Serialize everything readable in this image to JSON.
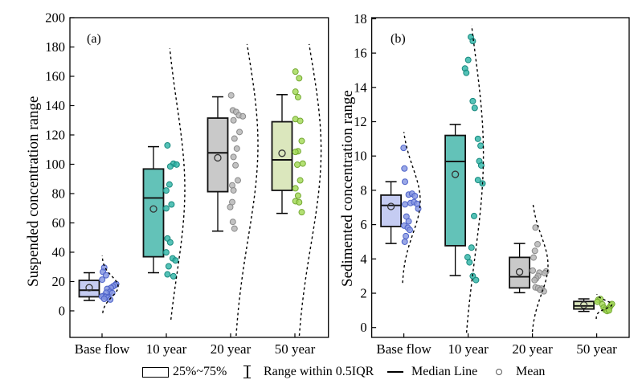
{
  "figure": {
    "background": "#ffffff",
    "axis_color": "#000000",
    "text_color": "#000000"
  },
  "legend": {
    "items": [
      {
        "icon": "box-icon",
        "label": "25%~75%"
      },
      {
        "icon": "whisker-icon",
        "label": "Range within 0.5IQR"
      },
      {
        "icon": "median-line-icon",
        "label": "Median Line"
      },
      {
        "icon": "mean-circle-icon",
        "label": "Mean"
      }
    ]
  },
  "chart_data": [
    {
      "type": "box",
      "panel_label": "(a)",
      "ylabel": "Suspended concentration range",
      "xlabel": "",
      "categories": [
        "Base flow",
        "10 year",
        "20 year",
        "50 year"
      ],
      "ylim": [
        -18.1,
        200
      ],
      "yticks": [
        0,
        20,
        40,
        60,
        80,
        100,
        120,
        140,
        160,
        180,
        200
      ],
      "grid": false,
      "series": [
        {
          "category": "Base flow",
          "box_color": "#c5ccf2",
          "point_color": "#8495e2",
          "point_edge_color": "#4d62c8",
          "box": {
            "whisker_low": 7.1,
            "q1": 9.6,
            "median": 14.1,
            "mean": 15.8,
            "q3": 20.8,
            "whisker_high": 26
          },
          "points": [
            {
              "v": 29.5,
              "dx": 2.7
            },
            {
              "v": 26.6,
              "dx": 1.1
            },
            {
              "v": 24.3,
              "dx": 4.9
            },
            {
              "v": 21.3,
              "dx": 0.2
            },
            {
              "v": 18.3,
              "dx": 17.6
            },
            {
              "v": 17.5,
              "dx": 16.0
            },
            {
              "v": 16.6,
              "dx": 13.5
            },
            {
              "v": 15.7,
              "dx": 11.0
            },
            {
              "v": 15.0,
              "dx": 6.4
            },
            {
              "v": 12.9,
              "dx": 9.7
            },
            {
              "v": 12.4,
              "dx": 5.2
            },
            {
              "v": 12.2,
              "dx": 12.7
            },
            {
              "v": 10.2,
              "dx": 1.9
            },
            {
              "v": 9.8,
              "dx": -0.2
            },
            {
              "v": 9.5,
              "dx": 4.7
            },
            {
              "v": 8.9,
              "dx": 7.4
            },
            {
              "v": 8.2,
              "dx": 2.7
            },
            {
              "v": 7.7,
              "dx": 10.2
            }
          ],
          "curve": {
            "dx0": 0,
            "amp": 20,
            "mu": 16.6,
            "sigma": 7.1,
            "lo": -1.5,
            "hi": 37.8
          }
        },
        {
          "category": "10 year",
          "box_color": "#63c2b8",
          "point_color": "#2fb5a7",
          "point_edge_color": "#17897e",
          "box": {
            "whisker_low": 26,
            "q1": 36.9,
            "median": 77,
            "mean": 69.5,
            "q3": 96.8,
            "whisker_high": 112
          },
          "points": [
            {
              "v": 112.9,
              "dx": 1.4
            },
            {
              "v": 100.4,
              "dx": 8.9
            },
            {
              "v": 98.5,
              "dx": 4.9
            },
            {
              "v": 99.8,
              "dx": 12.8
            },
            {
              "v": 86.2,
              "dx": 3.9
            },
            {
              "v": 82.1,
              "dx": -0.1
            },
            {
              "v": 72.6,
              "dx": 6.4
            },
            {
              "v": 69.9,
              "dx": -0.1
            },
            {
              "v": 49.4,
              "dx": 1.4
            },
            {
              "v": 46.7,
              "dx": 4.9
            },
            {
              "v": 39.9,
              "dx": -0.1
            },
            {
              "v": 35.8,
              "dx": 7.9
            },
            {
              "v": 34.4,
              "dx": 11.4
            },
            {
              "v": 30.4,
              "dx": 2.9
            },
            {
              "v": 24.9,
              "dx": 1.4
            },
            {
              "v": 23.6,
              "dx": 8.9
            }
          ],
          "curve": {
            "dx0": -2,
            "amp": 25,
            "mu": 83,
            "sigma": 58,
            "lo": -6,
            "hi": 179
          }
        },
        {
          "category": "20 year",
          "box_color": "#c9c9c9",
          "point_color": "#b5b5b5",
          "point_edge_color": "#8a8a8a",
          "box": {
            "whisker_low": 54.4,
            "q1": 81.3,
            "median": 107.8,
            "mean": 104.4,
            "q3": 131.5,
            "whisker_high": 146
          },
          "points": [
            {
              "v": 147.0,
              "dx": 0.7
            },
            {
              "v": 136.8,
              "dx": 2.8
            },
            {
              "v": 135.7,
              "dx": 6.9
            },
            {
              "v": 133.4,
              "dx": 10.3
            },
            {
              "v": 132.7,
              "dx": 15.2
            },
            {
              "v": 130.0,
              "dx": 3.6
            },
            {
              "v": 122.0,
              "dx": 11.1
            },
            {
              "v": 117.5,
              "dx": 4.8
            },
            {
              "v": 110.7,
              "dx": 7.8
            },
            {
              "v": 105.0,
              "dx": 3.6
            },
            {
              "v": 99.3,
              "dx": 6.1
            },
            {
              "v": 89.0,
              "dx": 9.0
            },
            {
              "v": 85.6,
              "dx": 2.0
            },
            {
              "v": 82.2,
              "dx": 3.6
            },
            {
              "v": 74.2,
              "dx": 2.0
            },
            {
              "v": 70.8,
              "dx": -0.5
            },
            {
              "v": 60.7,
              "dx": 2.8
            },
            {
              "v": 56.1,
              "dx": 4.8
            }
          ],
          "curve": {
            "dx0": 3,
            "amp": 31,
            "mu": 113.4,
            "sigma": 64,
            "lo": -17,
            "hi": 182
          }
        },
        {
          "category": "50 year",
          "box_color": "#dbe7bd",
          "point_color": "#a2d955",
          "point_edge_color": "#74a832",
          "box": {
            "whisker_low": 66.5,
            "q1": 82.2,
            "median": 103,
            "mean": 107.5,
            "q3": 129,
            "whisker_high": 147.5
          },
          "points": [
            {
              "v": 163.2,
              "dx": 0.7
            },
            {
              "v": 158.7,
              "dx": 5.3
            },
            {
              "v": 149.5,
              "dx": 0.7
            },
            {
              "v": 145.8,
              "dx": 3.9
            },
            {
              "v": 130.8,
              "dx": 0.7
            },
            {
              "v": 129.6,
              "dx": 6.6
            },
            {
              "v": 115.9,
              "dx": 8.5
            },
            {
              "v": 108.9,
              "dx": 3.9
            },
            {
              "v": 108.4,
              "dx": 0.7
            },
            {
              "v": 100.5,
              "dx": 9.8
            },
            {
              "v": 99.7,
              "dx": 3.0
            },
            {
              "v": 89.0,
              "dx": 6.6
            },
            {
              "v": 83.6,
              "dx": 0.7
            },
            {
              "v": 78.6,
              "dx": 3.9
            },
            {
              "v": 74.8,
              "dx": 0.7
            },
            {
              "v": 74.1,
              "dx": 5.3
            },
            {
              "v": 67.3,
              "dx": 8.5
            }
          ],
          "curve": {
            "dx0": 1,
            "amp": 31.6,
            "mu": 109.6,
            "sigma": 64,
            "lo": -17,
            "hi": 182
          }
        }
      ]
    },
    {
      "type": "box",
      "panel_label": "(b)",
      "ylabel": "Sedimented concentration range",
      "xlabel": "",
      "categories": [
        "Base flow",
        "10 year",
        "20 year",
        "50 year"
      ],
      "ylim": [
        -0.575,
        18.065
      ],
      "yticks": [
        0,
        2,
        4,
        6,
        8,
        10,
        12,
        14,
        16,
        18
      ],
      "grid": false,
      "series": [
        {
          "category": "Base flow",
          "box_color": "#c5ccf2",
          "point_color": "#8495e2",
          "point_edge_color": "#4d62c8",
          "box": {
            "whisker_low": 4.9,
            "q1": 5.89,
            "median": 7.12,
            "mean": 7.06,
            "q3": 7.72,
            "whisker_high": 8.5
          },
          "points": [
            {
              "v": 10.47,
              "dx": -0.3
            },
            {
              "v": 9.27,
              "dx": 0.7
            },
            {
              "v": 8.5,
              "dx": 1.4
            },
            {
              "v": 7.75,
              "dx": 6.0
            },
            {
              "v": 7.8,
              "dx": 10.2
            },
            {
              "v": 7.67,
              "dx": 13.7
            },
            {
              "v": 7.18,
              "dx": 1.4
            },
            {
              "v": 7.26,
              "dx": 8.4
            },
            {
              "v": 7.31,
              "dx": 12.7
            },
            {
              "v": 7.21,
              "dx": 16.5
            },
            {
              "v": 6.93,
              "dx": 17.9
            },
            {
              "v": 6.47,
              "dx": 3.2
            },
            {
              "v": 6.19,
              "dx": 6.0
            },
            {
              "v": 5.94,
              "dx": 0.4
            },
            {
              "v": 5.82,
              "dx": 4.9
            },
            {
              "v": 5.69,
              "dx": 7.4
            },
            {
              "v": 5.33,
              "dx": 2.5
            },
            {
              "v": 5.0,
              "dx": 1.1
            }
          ],
          "curve": {
            "dx0": -2.6,
            "amp": 23,
            "mu": 7.4,
            "sigma": 1.92,
            "lo": 2.6,
            "hi": 11.4
          }
        },
        {
          "category": "10 year",
          "box_color": "#63c2b8",
          "point_color": "#2fb5a7",
          "point_edge_color": "#17897e",
          "box": {
            "whisker_low": 3.03,
            "q1": 4.77,
            "median": 9.68,
            "mean": 8.93,
            "q3": 11.2,
            "whisker_high": 11.84
          },
          "points": [
            {
              "v": 16.94,
              "dx": 3.4
            },
            {
              "v": 16.7,
              "dx": 5.8
            },
            {
              "v": 15.6,
              "dx": 0.1
            },
            {
              "v": 15.1,
              "dx": -3.9
            },
            {
              "v": 14.85,
              "dx": -2.3
            },
            {
              "v": 13.2,
              "dx": 5.8
            },
            {
              "v": 12.8,
              "dx": 8.2
            },
            {
              "v": 11.0,
              "dx": 12.2
            },
            {
              "v": 10.6,
              "dx": 15.5
            },
            {
              "v": 9.7,
              "dx": 13.9
            },
            {
              "v": 9.45,
              "dx": 16.3
            },
            {
              "v": 8.6,
              "dx": 12.2
            },
            {
              "v": 8.4,
              "dx": 17.9
            },
            {
              "v": 6.5,
              "dx": 7.4
            },
            {
              "v": 4.66,
              "dx": 4.2
            },
            {
              "v": 4.1,
              "dx": -0.7
            },
            {
              "v": 3.8,
              "dx": 1.7
            },
            {
              "v": 3.0,
              "dx": 5.8
            },
            {
              "v": 2.77,
              "dx": 9.8
            }
          ],
          "curve": {
            "dx0": -8,
            "amp": 27,
            "mu": 10.1,
            "sigma": 6.0,
            "lo": -0.3,
            "hi": 17.6
          }
        },
        {
          "category": "20 year",
          "box_color": "#c9c9c9",
          "point_color": "#b5b5b5",
          "point_edge_color": "#8a8a8a",
          "box": {
            "whisker_low": 2.03,
            "q1": 2.31,
            "median": 2.96,
            "mean": 3.24,
            "q3": 4.09,
            "whisker_high": 4.9
          },
          "points": [
            {
              "v": 5.83,
              "dx": 3.8
            },
            {
              "v": 4.86,
              "dx": 6.4
            },
            {
              "v": 4.47,
              "dx": 3.1
            },
            {
              "v": 4.08,
              "dx": 1.4
            },
            {
              "v": 3.32,
              "dx": 0.4
            },
            {
              "v": 3.27,
              "dx": 17.0
            },
            {
              "v": 3.2,
              "dx": 8.7
            },
            {
              "v": 3.17,
              "dx": 15.3
            },
            {
              "v": 3.01,
              "dx": 7.1
            },
            {
              "v": 2.86,
              "dx": 4.7
            },
            {
              "v": 2.76,
              "dx": 2.7
            },
            {
              "v": 2.34,
              "dx": 3.8
            },
            {
              "v": 2.3,
              "dx": 7.1
            },
            {
              "v": 2.27,
              "dx": 11.4
            },
            {
              "v": 2.19,
              "dx": 9.7
            },
            {
              "v": 2.11,
              "dx": 14.3
            }
          ],
          "curve": {
            "dx0": -1.6,
            "amp": 21,
            "mu": 3.64,
            "sigma": 1.7,
            "lo": -0.25,
            "hi": 7.2
          }
        },
        {
          "category": "50 year",
          "box_color": "#dbe7bd",
          "point_color": "#a2d955",
          "point_edge_color": "#74a832",
          "box": {
            "whisker_low": 0.94,
            "q1": 1.08,
            "median": 1.26,
            "mean": 1.31,
            "q3": 1.52,
            "whisker_high": 1.67
          },
          "points": [
            {
              "v": 1.62,
              "dx": 2.1
            },
            {
              "v": 1.66,
              "dx": 4.6
            },
            {
              "v": 1.5,
              "dx": 0.8
            },
            {
              "v": 1.35,
              "dx": 7.1
            },
            {
              "v": 1.16,
              "dx": 8.7
            },
            {
              "v": 1.04,
              "dx": 10.4
            },
            {
              "v": 0.96,
              "dx": 12.9
            },
            {
              "v": 1.08,
              "dx": 14.5
            },
            {
              "v": 1.19,
              "dx": 16.2
            },
            {
              "v": 1.31,
              "dx": 17.8
            },
            {
              "v": 1.37,
              "dx": 19.0
            },
            {
              "v": 1.0,
              "dx": 15.3
            }
          ],
          "curve": {
            "dx0": -0.6,
            "amp": 19.5,
            "mu": 1.34,
            "sigma": 0.24,
            "lo": 0.5,
            "hi": 1.95
          }
        }
      ]
    }
  ]
}
